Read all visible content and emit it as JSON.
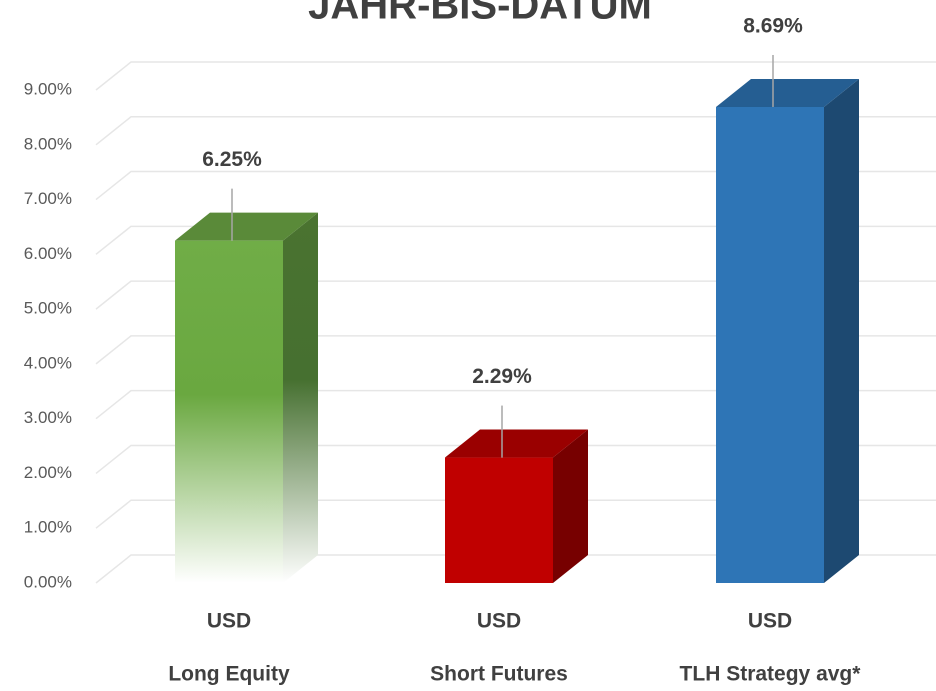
{
  "chart_data": {
    "type": "bar3d",
    "title": "JAHR-BIS-DATUM",
    "categories": [
      "Long Equity",
      "Short Futures",
      "TLH Strategy avg*"
    ],
    "sublabels": [
      "USD",
      "USD",
      "USD"
    ],
    "values": [
      6.25,
      2.29,
      8.69
    ],
    "value_labels": [
      "6.25%",
      "2.29%",
      "8.69%"
    ],
    "colors": [
      "#70ad47",
      "#c00000",
      "#2e75b6"
    ],
    "gradient_fade": [
      true,
      false,
      false
    ],
    "ylim": [
      0,
      9
    ],
    "yticks": [
      {
        "value": 0,
        "label": "0.00%"
      },
      {
        "value": 1,
        "label": "1.00%"
      },
      {
        "value": 2,
        "label": "2.00%"
      },
      {
        "value": 3,
        "label": "3.00%"
      },
      {
        "value": 4,
        "label": "4.00%"
      },
      {
        "value": 5,
        "label": "5.00%"
      },
      {
        "value": 6,
        "label": "6.00%"
      },
      {
        "value": 7,
        "label": "7.00%"
      },
      {
        "value": 8,
        "label": "8.00%"
      },
      {
        "value": 9,
        "label": "9.00%"
      }
    ],
    "grid": true
  }
}
